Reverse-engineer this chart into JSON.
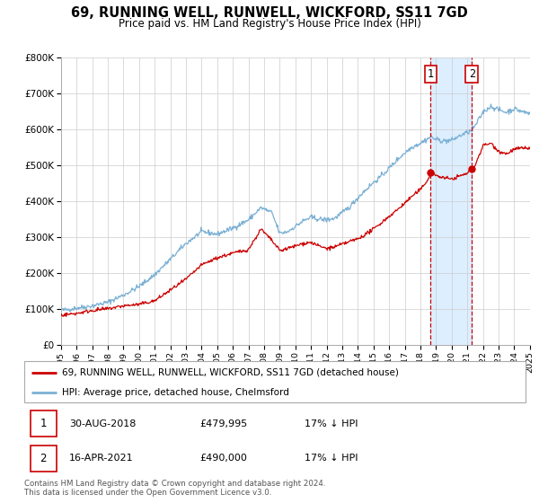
{
  "title": "69, RUNNING WELL, RUNWELL, WICKFORD, SS11 7GD",
  "subtitle": "Price paid vs. HM Land Registry's House Price Index (HPI)",
  "legend_label_red": "69, RUNNING WELL, RUNWELL, WICKFORD, SS11 7GD (detached house)",
  "legend_label_blue": "HPI: Average price, detached house, Chelmsford",
  "annotation1_date": "30-AUG-2018",
  "annotation1_price": "£479,995",
  "annotation1_hpi": "17% ↓ HPI",
  "annotation1_year": 2018.66,
  "annotation1_value": 479995,
  "annotation2_date": "16-APR-2021",
  "annotation2_price": "£490,000",
  "annotation2_hpi": "17% ↓ HPI",
  "annotation2_year": 2021.29,
  "annotation2_value": 490000,
  "footer": "Contains HM Land Registry data © Crown copyright and database right 2024.\nThis data is licensed under the Open Government Licence v3.0.",
  "ylim": [
    0,
    800000
  ],
  "yticks": [
    0,
    100000,
    200000,
    300000,
    400000,
    500000,
    600000,
    700000,
    800000
  ],
  "ytick_labels": [
    "£0",
    "£100K",
    "£200K",
    "£300K",
    "£400K",
    "£500K",
    "£600K",
    "£700K",
    "£800K"
  ],
  "xlim": [
    1995,
    2025
  ],
  "red_color": "#cc0000",
  "blue_color": "#7ab0d4",
  "shaded_color": "#ddeeff",
  "vline_color": "#cc0000",
  "background_color": "#ffffff",
  "grid_color": "#cccccc"
}
